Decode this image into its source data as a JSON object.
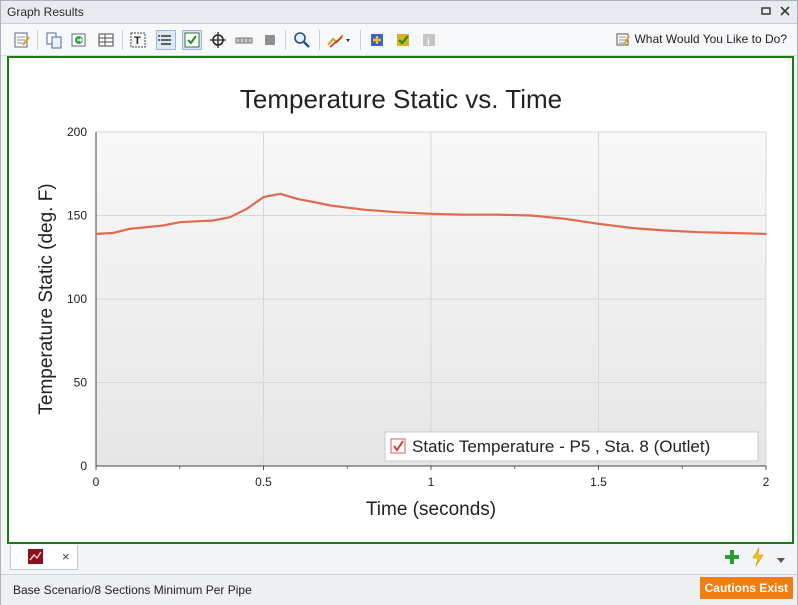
{
  "window": {
    "title": "Graph Results"
  },
  "toolbar": {
    "what_label": "What Would You Like to Do?",
    "icons": [
      "edit-notes-icon",
      "copy-icon",
      "export-icon",
      "table-icon",
      "text-annotation-icon",
      "legend-icon",
      "checkbox-icon",
      "crosshair-icon",
      "slider-icon",
      "stop-icon",
      "zoom-icon",
      "line-style-icon",
      "add-graph-icon",
      "check-graph-icon",
      "disabled-info-icon"
    ]
  },
  "colors": {
    "series": "#e06a50",
    "frame": "#1a7a1a",
    "caution": "#f07e12"
  },
  "chart_data": {
    "type": "line",
    "title": "Temperature Static vs. Time",
    "xlabel": "Time (seconds)",
    "ylabel": "Temperature Static (deg. F)",
    "xlim": [
      0,
      2
    ],
    "ylim": [
      0,
      200
    ],
    "xticks": [
      "0",
      "0.5",
      "1",
      "1.5",
      "2"
    ],
    "yticks": [
      "0",
      "50",
      "100",
      "150",
      "200"
    ],
    "grid": true,
    "legend_position": "bottom-right",
    "series": [
      {
        "name": "Static Temperature - P5 , Sta. 8 (Outlet)",
        "x": [
          0,
          0.05,
          0.1,
          0.15,
          0.2,
          0.25,
          0.3,
          0.35,
          0.4,
          0.45,
          0.5,
          0.55,
          0.6,
          0.65,
          0.7,
          0.8,
          0.9,
          1.0,
          1.1,
          1.2,
          1.3,
          1.4,
          1.5,
          1.6,
          1.7,
          1.8,
          1.9,
          2.0
        ],
        "y": [
          139,
          139.5,
          142,
          143,
          144,
          146,
          146.5,
          147,
          149,
          154,
          161,
          163,
          160,
          158,
          156,
          153.5,
          152,
          151,
          150.5,
          150.5,
          150,
          148,
          145,
          142.5,
          141,
          140,
          139.5,
          139
        ]
      }
    ]
  },
  "tabs": [
    {
      "name": "graph-tab",
      "close_label": "×"
    }
  ],
  "status": {
    "path": "Base Scenario/8 Sections Minimum Per Pipe",
    "caution_label": "Cautions Exist"
  }
}
